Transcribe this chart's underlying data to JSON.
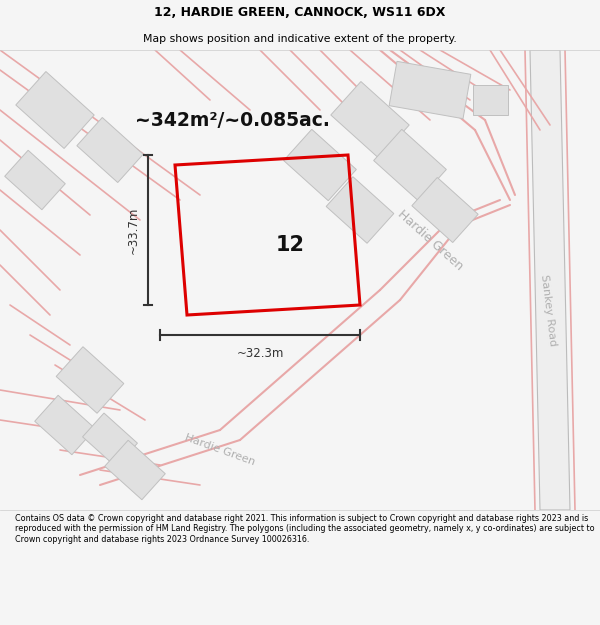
{
  "title_line1": "12, HARDIE GREEN, CANNOCK, WS11 6DX",
  "title_line2": "Map shows position and indicative extent of the property.",
  "area_text": "~342m²/~0.085ac.",
  "label_number": "12",
  "dim_width": "~32.3m",
  "dim_height": "~33.7m",
  "footer_text": "Contains OS data © Crown copyright and database right 2021. This information is subject to Crown copyright and database rights 2023 and is reproduced with the permission of HM Land Registry. The polygons (including the associated geometry, namely x, y co-ordinates) are subject to Crown copyright and database rights 2023 Ordnance Survey 100026316.",
  "bg_color": "#f5f5f5",
  "map_bg": "#ffffff",
  "road_color": "#e8a8a8",
  "road_thin": "#f0c0c0",
  "building_color": "#e0e0e0",
  "building_edge": "#c0c0c0",
  "plot_color": "#dd0000",
  "road_label_color": "#b0b0b0",
  "dim_color": "#333333",
  "sankey_fill": "#eeeeee",
  "sankey_edge": "#bbbbbb"
}
